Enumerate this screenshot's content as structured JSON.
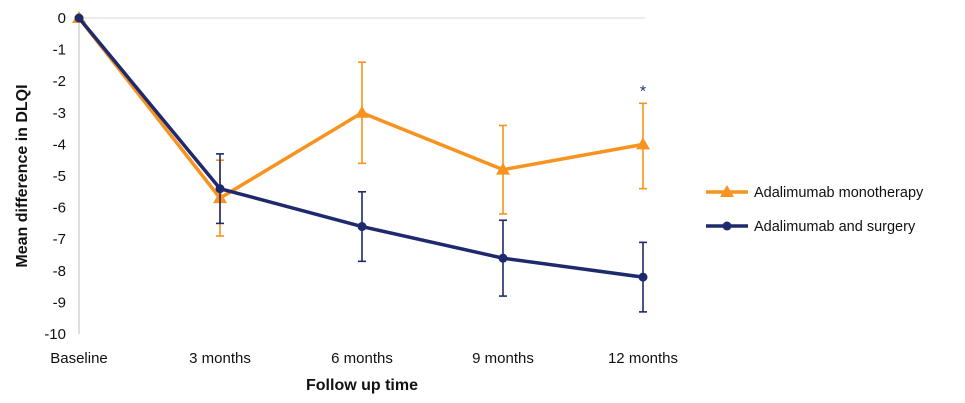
{
  "chart_data": {
    "type": "line",
    "categories": [
      "Baseline",
      "3 months",
      "6 months",
      "9 months",
      "12 months"
    ],
    "xlabel": "Follow up time",
    "ylabel": "Mean difference in DLQI",
    "ylim": [
      -10,
      0
    ],
    "yticks": [
      0,
      -1,
      -2,
      -3,
      -4,
      -5,
      -6,
      -7,
      -8,
      -9,
      -10
    ],
    "grid": "horizontal line at 0 only",
    "legend_position": "right",
    "series": [
      {
        "name": "Adalimumab monotherapy",
        "color": "#f7931e",
        "marker": "triangle",
        "values": [
          0,
          -5.7,
          -3.0,
          -4.8,
          -4.0
        ],
        "error_low": [
          null,
          -6.9,
          -4.6,
          -6.2,
          -5.4
        ],
        "error_high": [
          null,
          -4.5,
          -1.4,
          -3.4,
          -2.7
        ]
      },
      {
        "name": "Adalimumab and surgery",
        "color": "#1f2a6e",
        "marker": "circle",
        "values": [
          0,
          -5.4,
          -6.6,
          -7.6,
          -8.2
        ],
        "error_low": [
          null,
          -6.5,
          -7.7,
          -8.8,
          -9.3
        ],
        "error_high": [
          null,
          -4.3,
          -5.5,
          -6.4,
          -7.1
        ]
      }
    ],
    "annotations": [
      {
        "text": "*",
        "category": "12 months",
        "y": -2.3
      }
    ]
  }
}
